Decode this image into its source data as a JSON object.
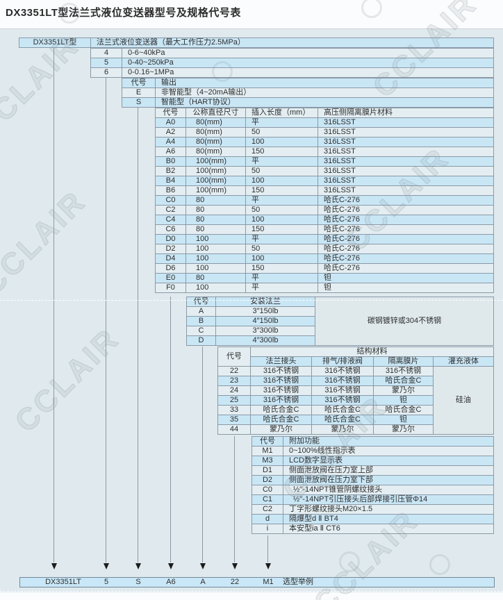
{
  "title": "DX3351LT型法兰式液位变送器型号及规格代号表",
  "watermark": "CCLAIR",
  "colors": {
    "panel": "#e0eaee",
    "row_blue": "#c9e6f5",
    "row_pale": "#e4eef2",
    "uniform_cell": "#dfe9ec",
    "border": "#8a99a6",
    "arrow": "#1c1c1c",
    "example_fill": "#c9e7f6"
  },
  "header": {
    "model": "DX3351LT型",
    "desc": "法兰式液位变送器（最大工作压力2.5MPa）"
  },
  "range": {
    "rows": [
      [
        "4",
        "0-6~40kPa"
      ],
      [
        "5",
        "0-40~250kPa"
      ],
      [
        "6",
        "0-0.16~1MPa"
      ]
    ]
  },
  "output": {
    "headers": [
      "代号",
      "输出"
    ],
    "rows": [
      [
        "E",
        "非智能型（4~20mA输出）"
      ],
      [
        "S",
        "智能型（HART协议）"
      ]
    ]
  },
  "sensor": {
    "headers": [
      "代号",
      "公称直径尺寸",
      "插入长度（mm）",
      "高压侧隔离膜片材料"
    ],
    "rows": [
      [
        "A0",
        "80(mm)",
        "平",
        "316LSST"
      ],
      [
        "A2",
        "80(mm)",
        "50",
        "316LSST"
      ],
      [
        "A4",
        "80(mm)",
        "100",
        "316LSST"
      ],
      [
        "A6",
        "80(mm)",
        "150",
        "316LSST"
      ],
      [
        "B0",
        "100(mm)",
        "平",
        "316LSST"
      ],
      [
        "B2",
        "100(mm)",
        "50",
        "316LSST"
      ],
      [
        "B4",
        "100(mm)",
        "100",
        "316LSST"
      ],
      [
        "B6",
        "100(mm)",
        "150",
        "316LSST"
      ],
      [
        "C0",
        "80",
        "平",
        "哈氏C-276"
      ],
      [
        "C2",
        "80",
        "50",
        "哈氏C-276"
      ],
      [
        "C4",
        "80",
        "100",
        "哈氏C-276"
      ],
      [
        "C6",
        "80",
        "150",
        "哈氏C-276"
      ],
      [
        "D0",
        "100",
        "平",
        "哈氏C-276"
      ],
      [
        "D2",
        "100",
        "50",
        "哈氏C-276"
      ],
      [
        "D4",
        "100",
        "100",
        "哈氏C-276"
      ],
      [
        "D6",
        "100",
        "150",
        "哈氏C-276"
      ],
      [
        "E0",
        "80",
        "平",
        "钽"
      ],
      [
        "F0",
        "100",
        "平",
        "钽"
      ]
    ]
  },
  "flange": {
    "headers": [
      "代号",
      "安装法兰"
    ],
    "material_note": "碳钢镀锌或304不锈钢",
    "rows": [
      [
        "A",
        "3″150lb"
      ],
      [
        "B",
        "4″150lb"
      ],
      [
        "C",
        "3″300lb"
      ],
      [
        "D",
        "4″300lb"
      ]
    ]
  },
  "structure": {
    "code_header": "代号",
    "group_header": "结构材料",
    "col_headers": [
      "法兰接头",
      "排气/排液阀",
      "隔离膜片",
      "灌充液体"
    ],
    "fill_liquid": "硅油",
    "rows": [
      [
        "22",
        "316不锈钢",
        "316不锈钢",
        "316不锈钢"
      ],
      [
        "23",
        "316不锈钢",
        "316不锈钢",
        "哈氏合金C"
      ],
      [
        "24",
        "316不锈钢",
        "316不锈钢",
        "蒙乃尔"
      ],
      [
        "25",
        "316不锈钢",
        "316不锈钢",
        "钽"
      ],
      [
        "33",
        "哈氏合金C",
        "哈氏合金C",
        "哈氏合金C"
      ],
      [
        "35",
        "哈氏合金C",
        "哈氏合金C",
        "钽"
      ],
      [
        "44",
        "蒙乃尔",
        "蒙乃尔",
        "蒙乃尔"
      ]
    ]
  },
  "extra": {
    "headers": [
      "代号",
      "附加功能"
    ],
    "rows": [
      [
        "M1",
        "0~100%线性指示表"
      ],
      [
        "M3",
        "LCD数字显示表"
      ],
      [
        "D1",
        "侧面泄放阀在压力室上部"
      ],
      [
        "D2",
        "侧面泄放阀在压力室下部"
      ],
      [
        "C0",
        "½′′-14NPT锥管阴螺纹接头"
      ],
      [
        "C1",
        "½′′-14NPT引压接头后部焊接引压管Φ14"
      ],
      [
        "C2",
        "丁字形螺纹接头M20×1.5"
      ],
      [
        "d",
        "隔爆型d Ⅱ BT4"
      ],
      [
        "i",
        "本安型ia Ⅱ CT6"
      ]
    ]
  },
  "example": {
    "values": [
      "DX3351LT",
      "5",
      "S",
      "A6",
      "A",
      "22",
      "M1"
    ],
    "label": "选型举例"
  }
}
